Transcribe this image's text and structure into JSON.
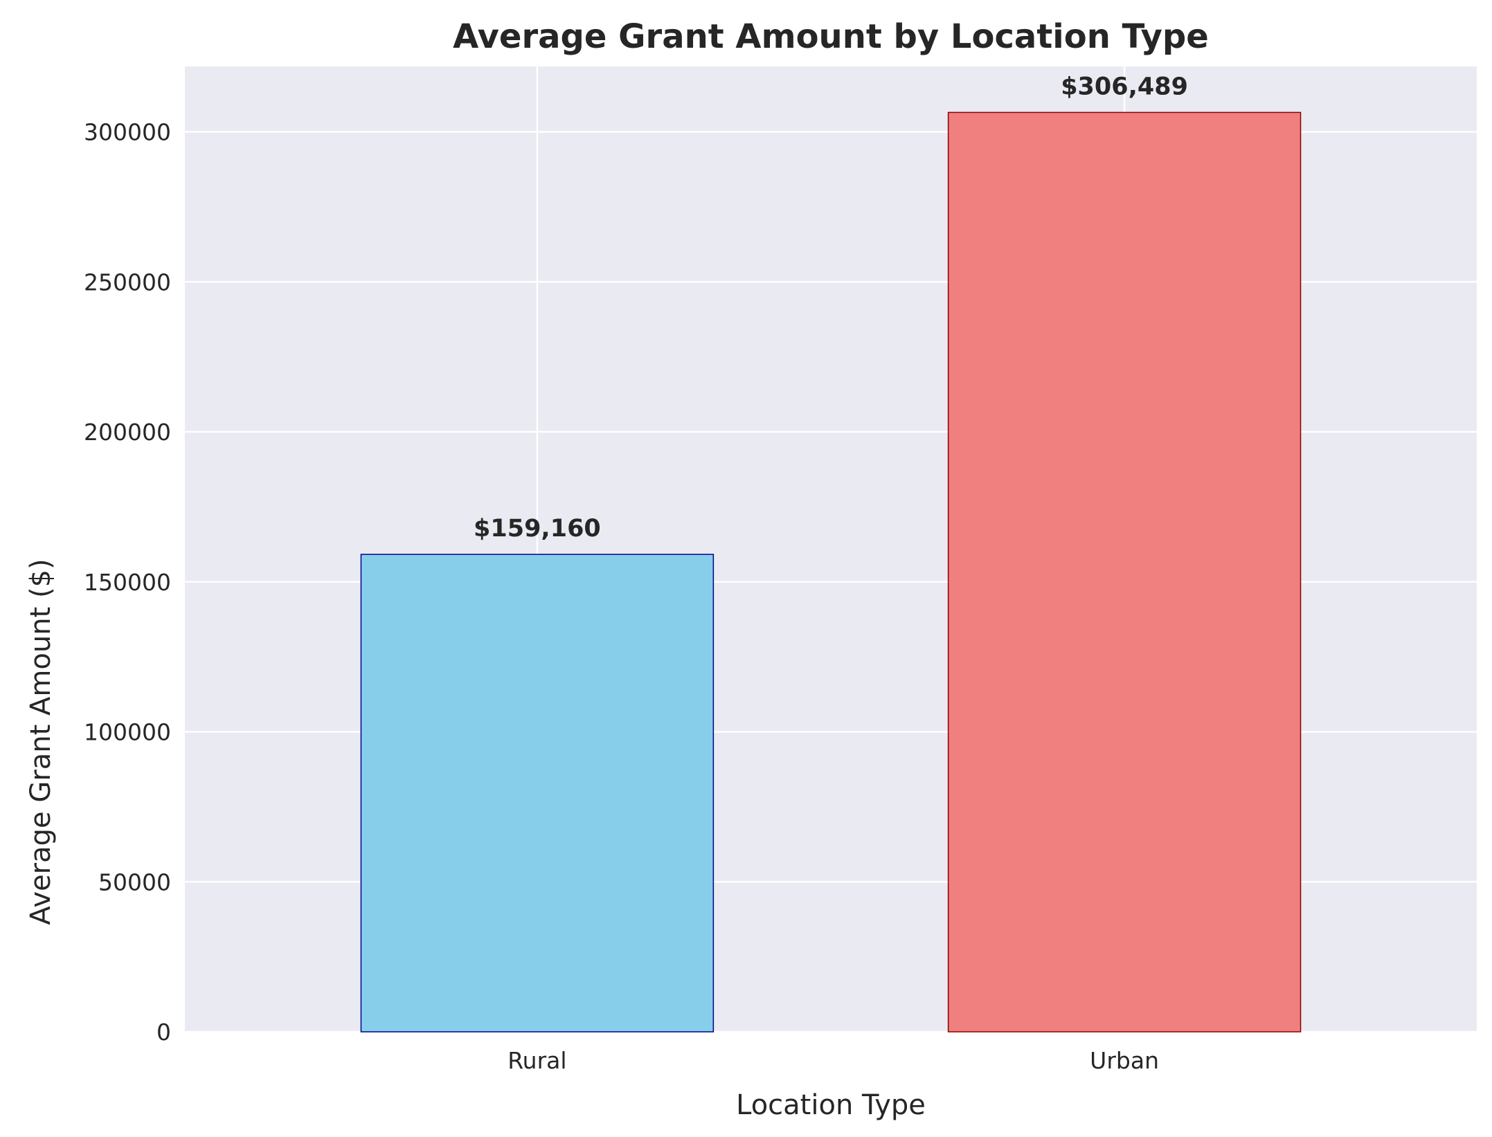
{
  "chart_data": {
    "type": "bar",
    "title": "Average Grant Amount by Location Type",
    "xlabel": "Location Type",
    "ylabel": "Average Grant Amount ($)",
    "categories": [
      "Rural",
      "Urban"
    ],
    "values": [
      159160,
      306489
    ],
    "value_labels": [
      "$159,160",
      "$306,489"
    ],
    "bar_colors": [
      "#87CEEB",
      "#F08080"
    ],
    "bar_edge_colors": [
      "#00008B",
      "#8B0000"
    ],
    "ylim": [
      0,
      321813
    ],
    "yticks": [
      0,
      50000,
      100000,
      150000,
      200000,
      250000,
      300000
    ],
    "ytick_labels": [
      "0",
      "50000",
      "100000",
      "150000",
      "200000",
      "250000",
      "300000"
    ],
    "grid": true,
    "grid_color": "#ffffff",
    "plot_background": "#EAEAF2",
    "legend": "none"
  }
}
